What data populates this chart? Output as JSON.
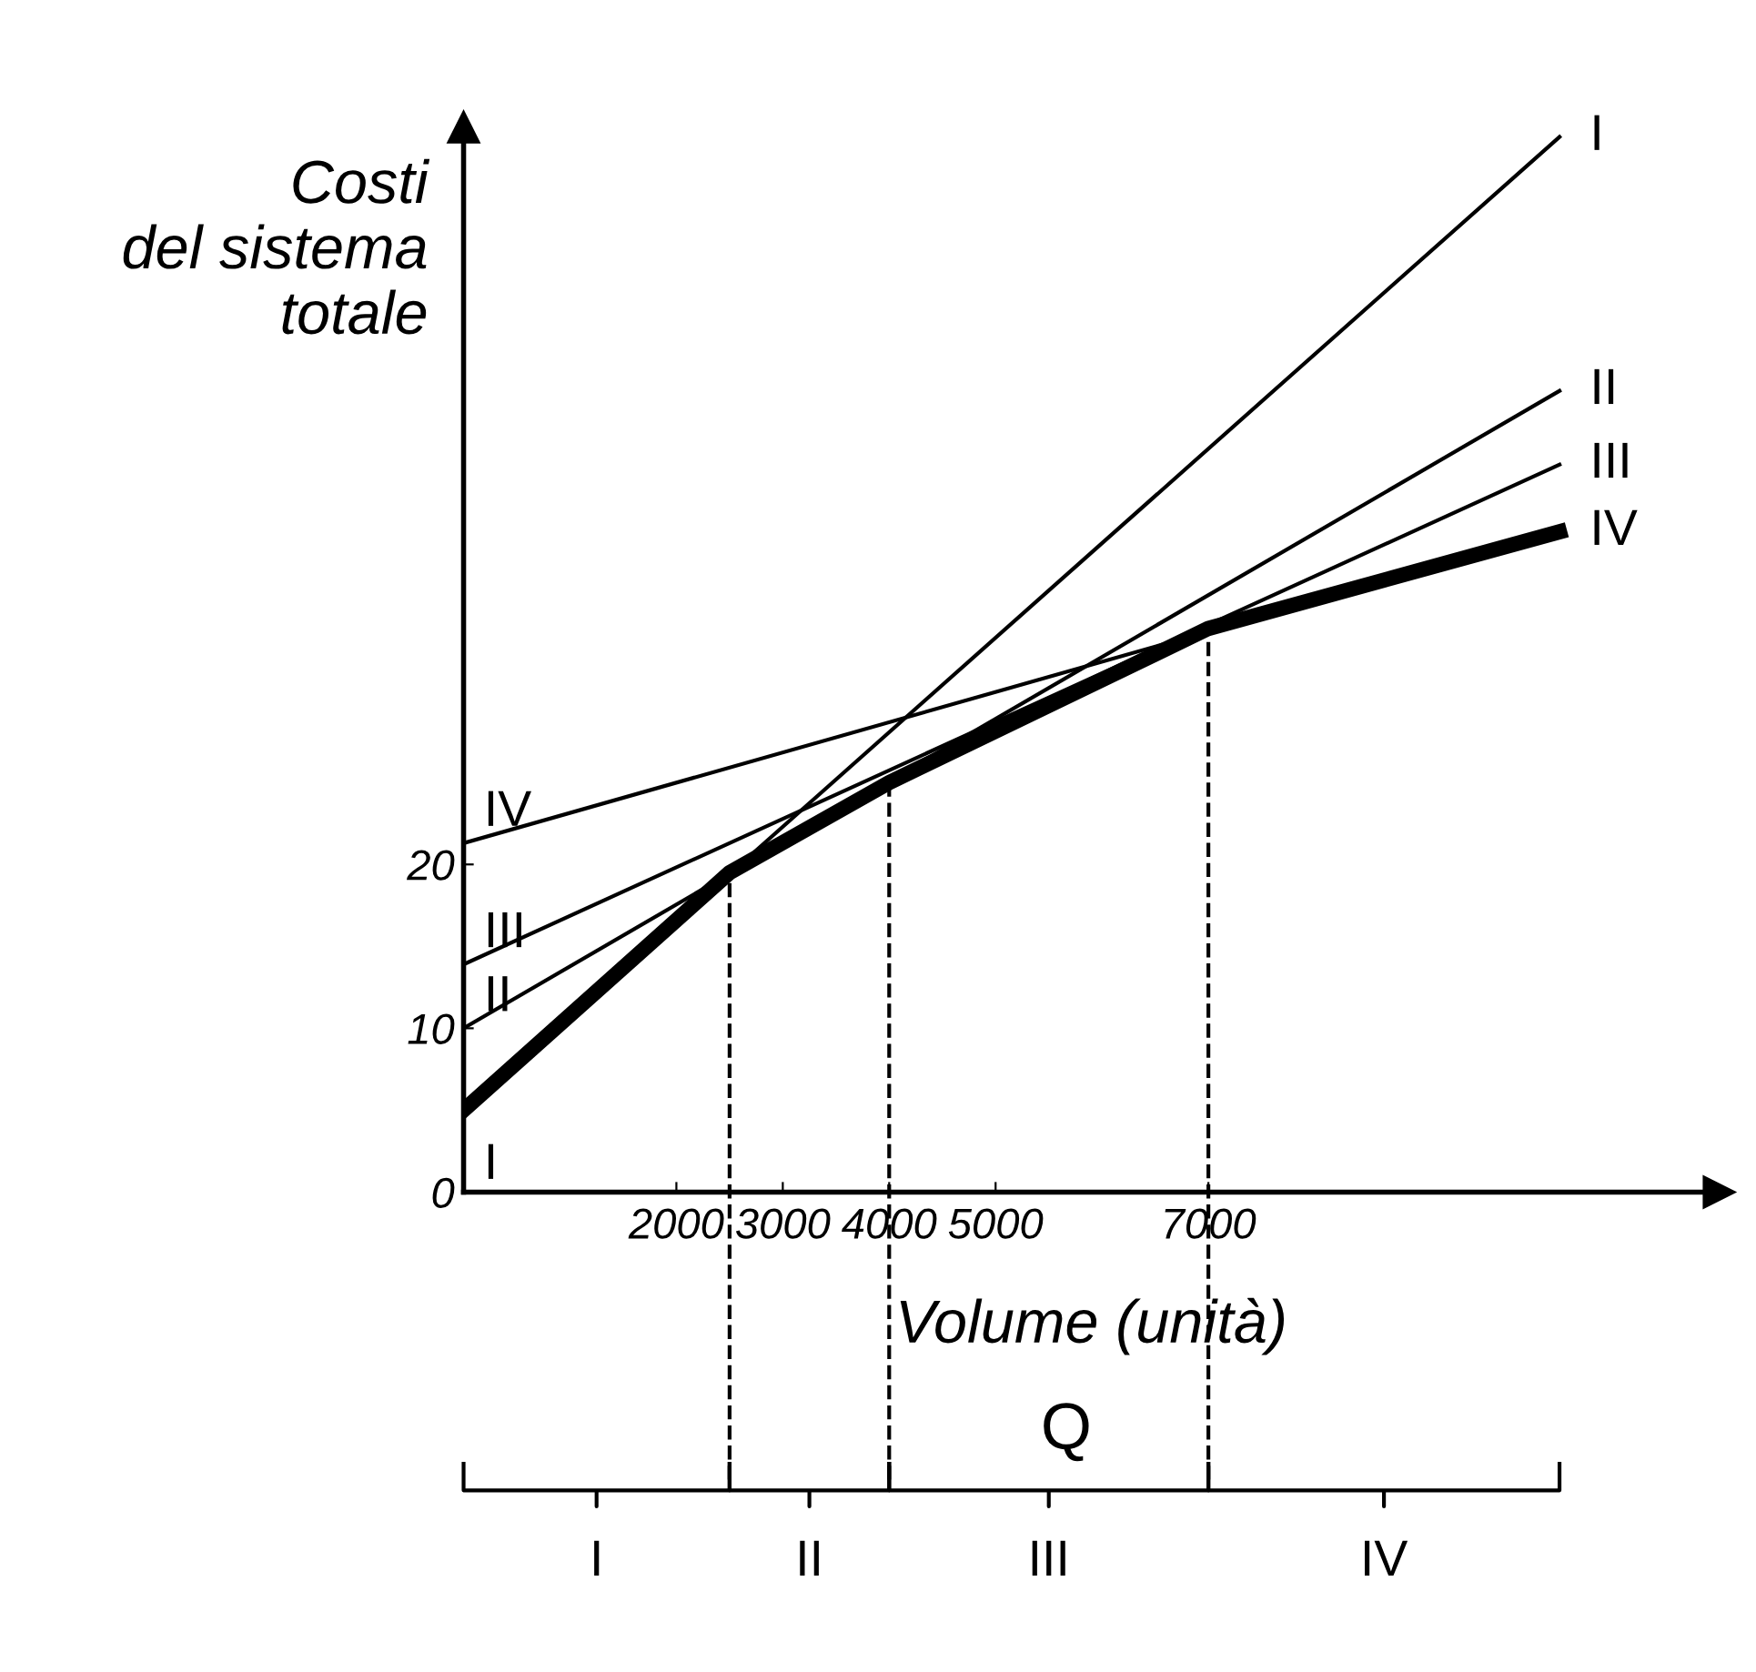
{
  "chart_data": {
    "type": "line",
    "ylabel": "Costi\ndel sistema\ntotale",
    "xlabel": "Volume (unità)",
    "annotations": [
      "Q",
      "I",
      "II",
      "III",
      "IV"
    ],
    "xlim": [
      0,
      11800
    ],
    "ylim": [
      0,
      65
    ],
    "xticks": [
      2000,
      3000,
      4000,
      5000,
      7000
    ],
    "yticks": [
      0,
      10,
      20
    ],
    "grid": false,
    "marker": "none",
    "series": [
      {
        "name": "I",
        "color": "#000000",
        "x": [
          0,
          10300
        ],
        "values": [
          5,
          64.4
        ]
      },
      {
        "name": "II",
        "color": "#000000",
        "x": [
          0,
          10300
        ],
        "values": [
          10,
          48.9
        ]
      },
      {
        "name": "III",
        "color": "#000000",
        "x": [
          0,
          10300
        ],
        "values": [
          13.9,
          44.4
        ]
      },
      {
        "name": "IV",
        "color": "#000000",
        "x": [
          0,
          10300
        ],
        "values": [
          21.3,
          40.3
        ]
      },
      {
        "color": "#000000",
        "x": [
          0,
          2500,
          4000,
          7000,
          10300
        ],
        "values": [
          5,
          19.5,
          25,
          34.4,
          40.3
        ]
      }
    ],
    "ref_lines": [
      {
        "axis": "x",
        "value": 2500,
        "line_style": "dashed"
      },
      {
        "axis": "x",
        "value": 4000,
        "line_style": "dashed"
      },
      {
        "axis": "x",
        "value": 7000,
        "line_style": "dashed"
      }
    ]
  }
}
